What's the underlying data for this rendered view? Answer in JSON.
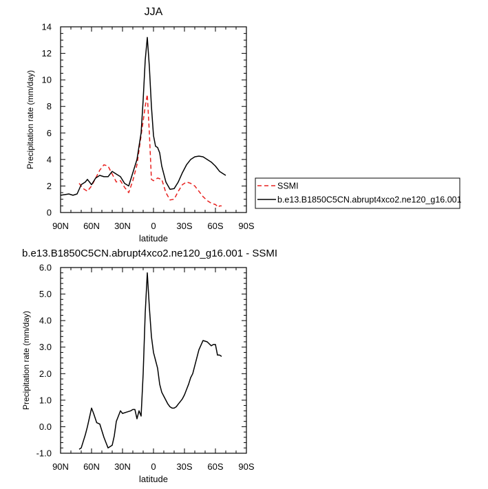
{
  "chart_data": [
    {
      "type": "line",
      "title": "JJA",
      "xlabel": "latitude",
      "ylabel": "Precipitation rate (mm/day)",
      "xlim": [
        -90,
        90
      ],
      "ylim": [
        0,
        14
      ],
      "x_ticks": [
        -90,
        -60,
        -30,
        0,
        30,
        60,
        90
      ],
      "x_tick_labels": [
        "90N",
        "60N",
        "30N",
        "0",
        "30S",
        "60S",
        "90S"
      ],
      "y_ticks": [
        0,
        2,
        4,
        6,
        8,
        10,
        12,
        14
      ],
      "y_tick_labels": [
        "0",
        "2",
        "4",
        "6",
        "8",
        "10",
        "12",
        "14"
      ],
      "legend_position": "right",
      "series": [
        {
          "name": "SSMI",
          "color": "#e8201e",
          "dash": "dashed",
          "x": [
            -72,
            -68,
            -64,
            -60,
            -56,
            -52,
            -48,
            -44,
            -40,
            -36,
            -32,
            -28,
            -24,
            -20,
            -16,
            -12,
            -8,
            -6,
            -4,
            -2,
            0,
            4,
            8,
            12,
            16,
            20,
            24,
            28,
            32,
            36,
            40,
            44,
            48,
            52,
            56,
            60,
            63,
            64,
            65,
            66
          ],
          "y": [
            2.2,
            1.8,
            1.6,
            2.0,
            2.6,
            3.2,
            3.6,
            3.5,
            2.9,
            2.3,
            2.4,
            1.9,
            1.5,
            2.4,
            3.6,
            5.8,
            8.0,
            8.9,
            6.0,
            2.5,
            2.4,
            2.6,
            2.5,
            1.5,
            0.95,
            1.0,
            1.6,
            2.1,
            2.3,
            2.2,
            2.0,
            1.6,
            1.2,
            0.9,
            0.7,
            0.6,
            0.4,
            0.5,
            0.5,
            0.5
          ]
        },
        {
          "name": "b.e13.B1850C5CN.abrupt4xco2.ne120_g16.001",
          "color": "#000000",
          "dash": "solid",
          "x": [
            -90,
            -86,
            -82,
            -78,
            -74,
            -70,
            -66,
            -64,
            -60,
            -56,
            -52,
            -48,
            -44,
            -40,
            -36,
            -32,
            -28,
            -24,
            -20,
            -16,
            -12,
            -10,
            -8,
            -6,
            -4,
            -2,
            0,
            2,
            4,
            6,
            8,
            12,
            16,
            20,
            24,
            28,
            32,
            36,
            40,
            44,
            48,
            52,
            56,
            60,
            64,
            68,
            70
          ],
          "y": [
            1.3,
            1.35,
            1.4,
            1.3,
            1.4,
            2.1,
            2.3,
            2.5,
            2.1,
            2.6,
            2.8,
            2.7,
            2.7,
            3.1,
            2.9,
            2.7,
            2.2,
            2.0,
            3.0,
            4.0,
            6.0,
            8.5,
            11.5,
            13.2,
            11.0,
            8.0,
            5.8,
            5.0,
            4.9,
            4.5,
            3.5,
            2.3,
            1.75,
            1.8,
            2.3,
            3.0,
            3.6,
            4.0,
            4.2,
            4.25,
            4.2,
            4.0,
            3.8,
            3.5,
            3.1,
            2.9,
            2.8
          ]
        }
      ]
    },
    {
      "type": "line",
      "title": "b.e13.B1850C5CN.abrupt4xco2.ne120_g16.001 - SSMI",
      "xlabel": "latitude",
      "ylabel": "Precipitation rate (mm/day)",
      "xlim": [
        -90,
        90
      ],
      "ylim": [
        -1,
        6
      ],
      "x_ticks": [
        -90,
        -60,
        -30,
        0,
        30,
        60,
        90
      ],
      "x_tick_labels": [
        "90N",
        "60N",
        "30N",
        "0",
        "30S",
        "60S",
        "90S"
      ],
      "y_ticks": [
        -1,
        0,
        1,
        2,
        3,
        4,
        5,
        6
      ],
      "y_tick_labels": [
        "-1.0",
        "0.0",
        "1.0",
        "2.0",
        "3.0",
        "4.0",
        "5.0",
        "6.0"
      ],
      "series": [
        {
          "color": "#000000",
          "dash": "solid",
          "x": [
            -72,
            -70,
            -66,
            -64,
            -60,
            -58,
            -55,
            -52,
            -48,
            -46,
            -44,
            -40,
            -38,
            -36,
            -34,
            -32,
            -30,
            -26,
            -22,
            -20,
            -18,
            -16,
            -14,
            -12,
            -10,
            -8,
            -6,
            -4,
            -2,
            0,
            2,
            4,
            6,
            8,
            10,
            12,
            14,
            16,
            18,
            20,
            22,
            24,
            26,
            28,
            30,
            32,
            34,
            36,
            38,
            40,
            44,
            48,
            52,
            56,
            58,
            60,
            62,
            64,
            66
          ],
          "y": [
            -0.85,
            -0.8,
            -0.3,
            0.0,
            0.7,
            0.5,
            0.15,
            0.1,
            -0.4,
            -0.6,
            -0.8,
            -0.7,
            -0.35,
            0.2,
            0.4,
            0.6,
            0.5,
            0.55,
            0.6,
            0.65,
            0.65,
            0.3,
            0.6,
            0.4,
            2.0,
            4.3,
            5.8,
            4.5,
            3.4,
            2.8,
            2.5,
            2.2,
            1.6,
            1.3,
            1.15,
            1.0,
            0.85,
            0.75,
            0.7,
            0.7,
            0.75,
            0.85,
            0.95,
            1.05,
            1.2,
            1.4,
            1.6,
            1.85,
            2.0,
            2.3,
            2.9,
            3.25,
            3.2,
            3.05,
            3.1,
            3.1,
            2.7,
            2.7,
            2.65
          ]
        }
      ]
    }
  ]
}
